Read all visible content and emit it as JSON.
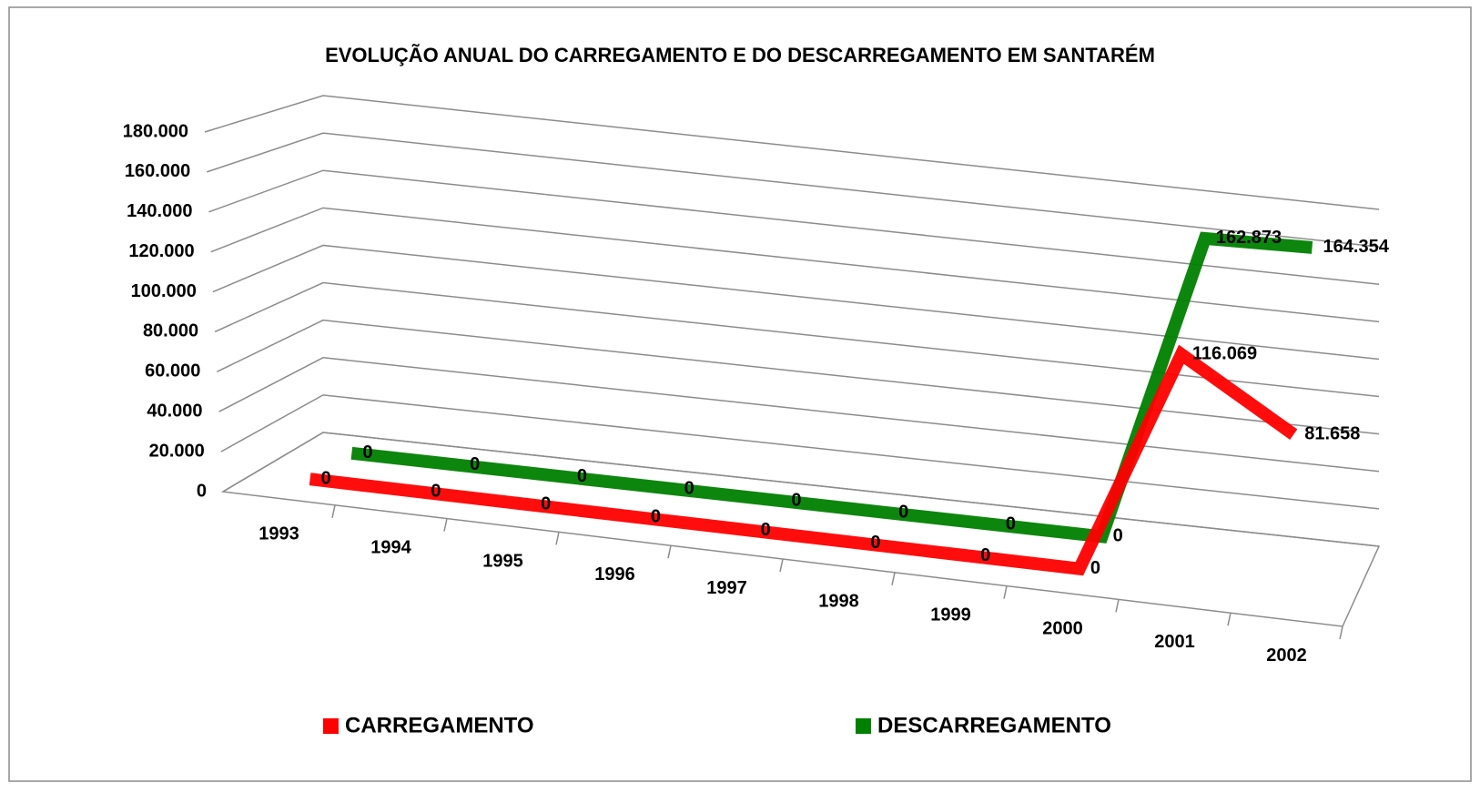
{
  "chart_data": {
    "type": "line3d",
    "title": "EVOLUÇÃO ANUAL DO CARREGAMENTO E DO DESCARREGAMENTO EM SANTARÉM",
    "categories": [
      "1993",
      "1994",
      "1995",
      "1996",
      "1997",
      "1998",
      "1999",
      "2000",
      "2001",
      "2002"
    ],
    "series": [
      {
        "name": "CARREGAMENTO",
        "color": "#ff0000",
        "values": [
          0,
          0,
          0,
          0,
          0,
          0,
          0,
          0,
          116069,
          81658
        ],
        "value_labels": [
          "0",
          "0",
          "0",
          "0",
          "0",
          "0",
          "0",
          "0",
          "116.069",
          "81.658"
        ]
      },
      {
        "name": "DESCARREGAMENTO",
        "color": "#008000",
        "values": [
          0,
          0,
          0,
          0,
          0,
          0,
          0,
          0,
          162873,
          164354
        ],
        "value_labels": [
          "0",
          "0",
          "0",
          "0",
          "0",
          "0",
          "0",
          "0",
          "162.873",
          "164.354"
        ]
      }
    ],
    "ylim": [
      0,
      180000
    ],
    "yticks": [
      0,
      {
        "value": 20000,
        "label": "20.000"
      },
      {
        "value": 40000,
        "label": "40.000"
      },
      {
        "value": 60000,
        "label": "60.000"
      },
      {
        "value": 80000,
        "label": "80.000"
      },
      {
        "value": 100000,
        "label": "100.000"
      },
      {
        "value": 120000,
        "label": "120.000"
      },
      {
        "value": 140000,
        "label": "140.000"
      },
      {
        "value": 160000,
        "label": "160.000"
      },
      {
        "value": 180000,
        "label": "180.000"
      }
    ],
    "grid": true,
    "legend": "bottom"
  }
}
